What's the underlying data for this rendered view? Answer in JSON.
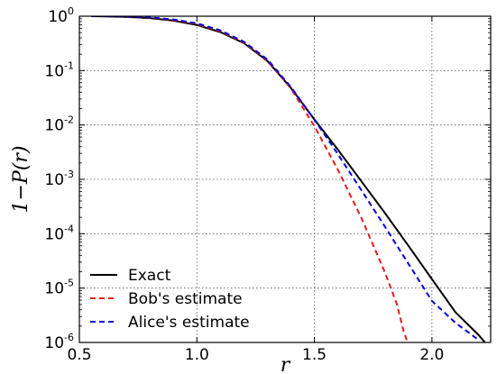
{
  "chart_data": {
    "type": "line",
    "title": "",
    "xlabel": "r",
    "ylabel": "1−P(r)",
    "xlim": [
      0.5,
      2.25
    ],
    "ylim": [
      1e-06,
      1
    ],
    "yscale": "log",
    "grid": true,
    "legend_position": "bottom-left",
    "x_ticks": [
      {
        "value": 0.5,
        "label": "0.5"
      },
      {
        "value": 1.0,
        "label": "1.0"
      },
      {
        "value": 1.5,
        "label": "1.5"
      },
      {
        "value": 2.0,
        "label": "2.0"
      }
    ],
    "y_ticks": [
      {
        "value": 1.0,
        "base": "10",
        "exp": "0"
      },
      {
        "value": 0.1,
        "base": "10",
        "exp": "-1"
      },
      {
        "value": 0.01,
        "base": "10",
        "exp": "-2"
      },
      {
        "value": 0.001,
        "base": "10",
        "exp": "-3"
      },
      {
        "value": 0.0001,
        "base": "10",
        "exp": "-4"
      },
      {
        "value": 1e-05,
        "base": "10",
        "exp": "-5"
      },
      {
        "value": 1e-06,
        "base": "10",
        "exp": "-6"
      }
    ],
    "series": [
      {
        "name": "Exact",
        "color": "#000000",
        "dash": "solid",
        "points": [
          [
            0.55,
            1.0
          ],
          [
            0.6,
            0.995
          ],
          [
            0.7,
            0.97
          ],
          [
            0.8,
            0.92
          ],
          [
            0.9,
            0.83
          ],
          [
            1.0,
            0.69
          ],
          [
            1.1,
            0.51
          ],
          [
            1.2,
            0.32
          ],
          [
            1.3,
            0.15
          ],
          [
            1.4,
            0.048
          ],
          [
            1.5,
            0.0126
          ],
          [
            1.6,
            0.0035
          ],
          [
            1.7,
            0.00092
          ],
          [
            1.8,
            0.00024
          ],
          [
            1.9,
            6e-05
          ],
          [
            2.0,
            1.46e-05
          ],
          [
            2.1,
            3.6e-06
          ],
          [
            2.2,
            1.35e-06
          ],
          [
            2.25,
            7.5e-07
          ]
        ]
      },
      {
        "name": "Bob's estimate",
        "color": "#e41a1c",
        "dash": "dashed",
        "points": [
          [
            0.55,
            1.0
          ],
          [
            0.6,
            0.997
          ],
          [
            0.7,
            0.98
          ],
          [
            0.8,
            0.94
          ],
          [
            0.9,
            0.85
          ],
          [
            1.0,
            0.72
          ],
          [
            1.1,
            0.53
          ],
          [
            1.2,
            0.33
          ],
          [
            1.3,
            0.155
          ],
          [
            1.4,
            0.047
          ],
          [
            1.5,
            0.0095
          ],
          [
            1.6,
            0.0015
          ],
          [
            1.7,
            0.000195
          ],
          [
            1.8,
            1.95e-05
          ],
          [
            1.85,
            5.2e-06
          ],
          [
            1.88,
            1.6e-06
          ],
          [
            1.9,
            9e-07
          ]
        ]
      },
      {
        "name": "Alice's estimate",
        "color": "#0000e0",
        "dash": "dashed",
        "points": [
          [
            0.55,
            1.0
          ],
          [
            0.6,
            0.998
          ],
          [
            0.7,
            0.985
          ],
          [
            0.8,
            0.95
          ],
          [
            0.9,
            0.87
          ],
          [
            1.0,
            0.74
          ],
          [
            1.1,
            0.55
          ],
          [
            1.2,
            0.34
          ],
          [
            1.3,
            0.16
          ],
          [
            1.4,
            0.05
          ],
          [
            1.5,
            0.0125
          ],
          [
            1.6,
            0.0029
          ],
          [
            1.7,
            0.00063
          ],
          [
            1.8,
            0.000135
          ],
          [
            1.9,
            2.8e-05
          ],
          [
            2.0,
            5.8e-06
          ],
          [
            2.1,
            2.3e-06
          ],
          [
            2.2,
            1.1e-06
          ]
        ]
      }
    ]
  }
}
